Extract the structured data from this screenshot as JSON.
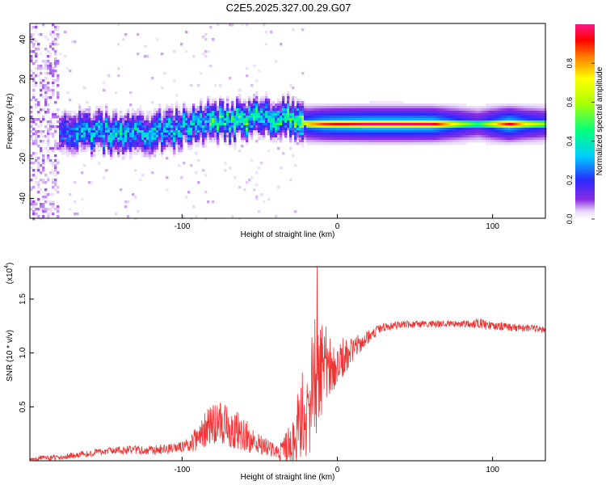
{
  "title": "C2E5.2025.327.00.29.G07",
  "chart_data": [
    {
      "type": "heatmap",
      "name": "spectrogram",
      "xlabel": "Height of straight line (km)",
      "ylabel": "Frequency (Hz)",
      "xlim": [
        -198,
        134
      ],
      "ylim": [
        -50,
        48
      ],
      "xticks": [
        -100,
        0,
        100
      ],
      "yticks": [
        -40,
        -20,
        0,
        20,
        40
      ],
      "colorbar": {
        "label": "Normalized spectral amplitude",
        "range": [
          0,
          1
        ],
        "ticks": [
          "0.0",
          "0.2",
          "0.4",
          "0.6",
          "0.8"
        ]
      },
      "ridge": {
        "x": [
          -198,
          -180,
          -170,
          -160,
          -150,
          -140,
          -130,
          -120,
          -110,
          -100,
          -90,
          -80,
          -70,
          -60,
          -50,
          -40,
          -30,
          -25,
          -20,
          -10,
          0,
          10,
          20,
          40,
          60,
          80,
          90,
          100,
          110,
          120,
          134
        ],
        "freq": [
          -8,
          -7,
          -7,
          -6,
          -6,
          -7,
          -7,
          -5,
          -6,
          -4,
          -1,
          -1,
          -1,
          0,
          1,
          1,
          1,
          0,
          -2,
          -2,
          -2,
          -2,
          -2,
          -2,
          -2,
          -2,
          -2,
          -2,
          -2,
          -2,
          -2
        ],
        "amplitude": [
          0.05,
          0.2,
          0.28,
          0.32,
          0.33,
          0.32,
          0.3,
          0.3,
          0.32,
          0.33,
          0.35,
          0.4,
          0.38,
          0.42,
          0.36,
          0.38,
          0.4,
          0.5,
          0.75,
          0.88,
          0.92,
          0.95,
          0.97,
          0.97,
          0.96,
          0.6,
          0.45,
          0.7,
          0.95,
          0.72,
          0.55
        ]
      }
    },
    {
      "type": "line",
      "name": "snr",
      "xlabel": "Height of straight line (km)",
      "ylabel": "SNR (10 * v/v)",
      "scale_label": "(x10^4)",
      "scale_base": "(x10",
      "scale_exp": "4",
      "xlim": [
        -198,
        134
      ],
      "ylim": [
        0,
        1.8
      ],
      "xticks": [
        -100,
        0,
        100
      ],
      "yticks": [
        "0.5",
        "1.0",
        "1.5"
      ],
      "color": "#ee3333",
      "series": [
        {
          "name": "SNR",
          "x": [
            -198,
            -180,
            -170,
            -160,
            -150,
            -140,
            -130,
            -120,
            -110,
            -100,
            -90,
            -85,
            -80,
            -75,
            -70,
            -65,
            -60,
            -55,
            -50,
            -45,
            -40,
            -35,
            -30,
            -25,
            -22,
            -20,
            -18,
            -15,
            -13,
            -10,
            -5,
            0,
            5,
            10,
            15,
            20,
            25,
            30,
            40,
            50,
            60,
            70,
            80,
            85,
            90,
            95,
            100,
            110,
            120,
            134
          ],
          "y": [
            0.02,
            0.03,
            0.05,
            0.07,
            0.09,
            0.1,
            0.1,
            0.1,
            0.11,
            0.13,
            0.2,
            0.28,
            0.36,
            0.38,
            0.35,
            0.3,
            0.24,
            0.2,
            0.15,
            0.12,
            0.1,
            0.1,
            0.14,
            0.28,
            0.42,
            0.52,
            0.6,
            0.72,
            0.8,
            0.86,
            0.9,
            0.92,
            0.97,
            1.03,
            1.1,
            1.15,
            1.2,
            1.24,
            1.26,
            1.27,
            1.27,
            1.27,
            1.27,
            1.27,
            1.28,
            1.26,
            1.25,
            1.24,
            1.23,
            1.22
          ]
        }
      ],
      "noise": {
        "x": [
          -198,
          -100,
          -90,
          -80,
          -70,
          -60,
          -50,
          -40,
          -30,
          -25,
          -20,
          -15,
          -10,
          -5,
          0,
          10,
          20,
          30,
          60,
          80,
          90,
          100,
          134
        ],
        "amp": [
          0.02,
          0.05,
          0.12,
          0.22,
          0.22,
          0.16,
          0.1,
          0.06,
          0.2,
          0.4,
          0.5,
          0.6,
          0.45,
          0.3,
          0.22,
          0.12,
          0.06,
          0.04,
          0.03,
          0.03,
          0.05,
          0.04,
          0.03
        ]
      },
      "spike": {
        "x": -13,
        "y": 1.8
      }
    }
  ]
}
